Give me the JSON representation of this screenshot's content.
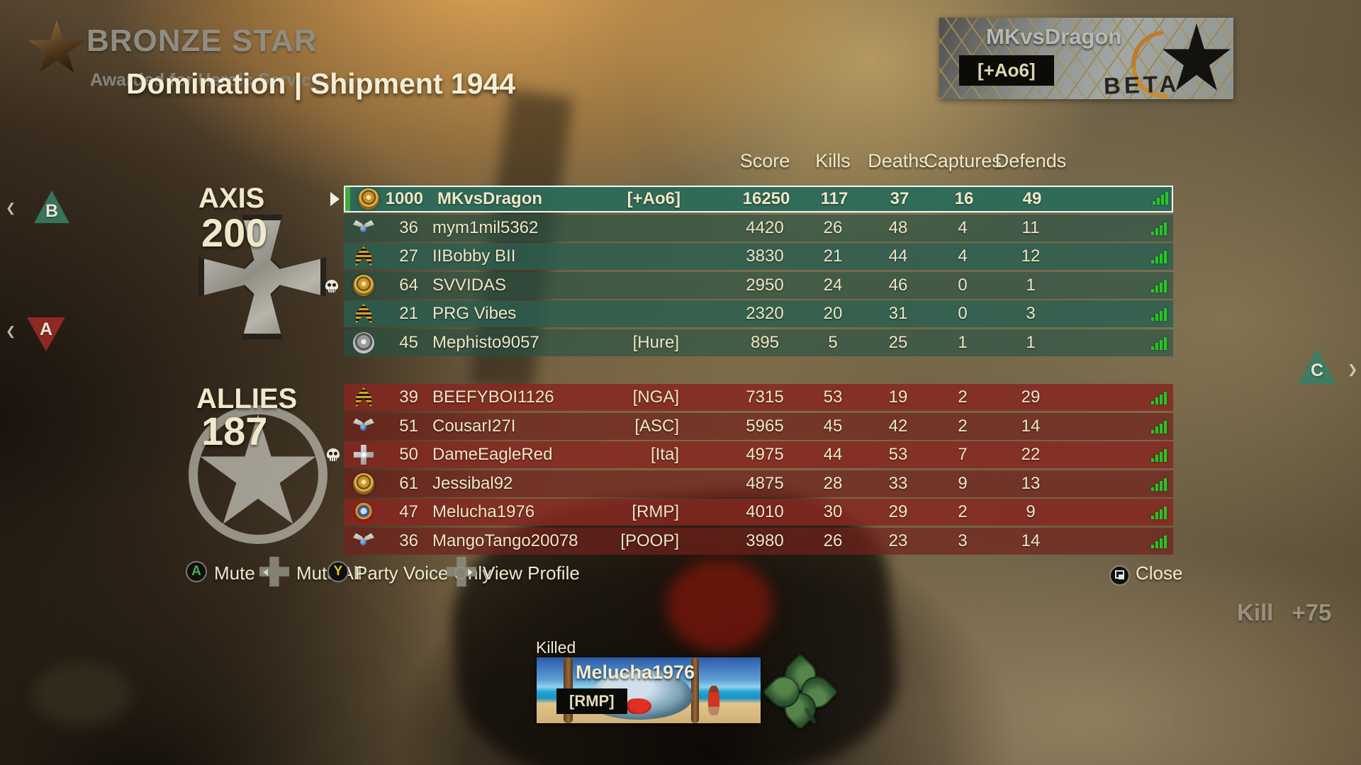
{
  "award": {
    "title": "BRONZE STAR",
    "subtitle": "Awarded for Heroic Service"
  },
  "match": {
    "mode_map": "Domination | Shipment 1944"
  },
  "player_card": {
    "name": "MKvsDragon",
    "clan": "[+Ao6]",
    "stamp": "BETA"
  },
  "columns": [
    "Score",
    "Kills",
    "Deaths",
    "Captures",
    "Defends"
  ],
  "teams": [
    {
      "name": "AXIS",
      "score": "200",
      "emblem": "iron-cross",
      "players": [
        {
          "level": "1000",
          "name": "MKvsDragon",
          "clan": "[+Ao6]",
          "score": "16250",
          "kills": "117",
          "deaths": "37",
          "captures": "16",
          "defends": "49",
          "emblem": "prestige-gold",
          "highlight": true
        },
        {
          "level": "36",
          "name": "mym1mil5362",
          "clan": "",
          "score": "4420",
          "kills": "26",
          "deaths": "48",
          "captures": "4",
          "defends": "11",
          "emblem": "wings"
        },
        {
          "level": "27",
          "name": "IIBobby BII",
          "clan": "",
          "score": "3830",
          "kills": "21",
          "deaths": "44",
          "captures": "4",
          "defends": "12",
          "emblem": "chevrons"
        },
        {
          "level": "64",
          "name": "SVVIDAS",
          "clan": "",
          "score": "2950",
          "kills": "24",
          "deaths": "46",
          "captures": "0",
          "defends": "1",
          "emblem": "prestige-gold"
        },
        {
          "level": "21",
          "name": "PRG Vibes",
          "clan": "",
          "score": "2320",
          "kills": "20",
          "deaths": "31",
          "captures": "0",
          "defends": "3",
          "emblem": "chevrons"
        },
        {
          "level": "45",
          "name": "Mephisto9057",
          "clan": "[Hure]",
          "score": "895",
          "kills": "5",
          "deaths": "25",
          "captures": "1",
          "defends": "1",
          "emblem": "medal-silver"
        }
      ]
    },
    {
      "name": "ALLIES",
      "score": "187",
      "emblem": "allied-star",
      "players": [
        {
          "level": "39",
          "name": "BEEFYBOI1126",
          "clan": "[NGA]",
          "score": "7315",
          "kills": "53",
          "deaths": "19",
          "captures": "2",
          "defends": "29",
          "emblem": "chevrons"
        },
        {
          "level": "51",
          "name": "CousarI27I",
          "clan": "[ASC]",
          "score": "5965",
          "kills": "45",
          "deaths": "42",
          "captures": "2",
          "defends": "14",
          "emblem": "wings"
        },
        {
          "level": "50",
          "name": "DameEagleRed",
          "clan": "[Ita]",
          "score": "4975",
          "kills": "44",
          "deaths": "53",
          "captures": "7",
          "defends": "22",
          "emblem": "cross-silver"
        },
        {
          "level": "61",
          "name": "Jessibal92",
          "clan": "",
          "score": "4875",
          "kills": "28",
          "deaths": "33",
          "captures": "9",
          "defends": "13",
          "emblem": "prestige-gold"
        },
        {
          "level": "47",
          "name": "Melucha1976",
          "clan": "[RMP]",
          "score": "4010",
          "kills": "30",
          "deaths": "29",
          "captures": "2",
          "defends": "9",
          "emblem": "rosette-red"
        },
        {
          "level": "36",
          "name": "MangoTango20078",
          "clan": "[POOP]",
          "score": "3980",
          "kills": "26",
          "deaths": "23",
          "captures": "3",
          "defends": "14",
          "emblem": "wings"
        }
      ]
    }
  ],
  "actions": [
    {
      "button": "A",
      "label": "Mute"
    },
    {
      "button": "dpad-left",
      "label": "Mute All"
    },
    {
      "button": "Y",
      "label": "Party Voice Only"
    },
    {
      "button": "dpad-right",
      "label": "View Profile"
    }
  ],
  "close": {
    "icon": "view-button",
    "label": "Close"
  },
  "killfeed": {
    "heading": "Killed",
    "player": "Melucha1976",
    "clan": "[RMP]"
  },
  "score_popup": {
    "event": "Kill",
    "points": "+75"
  },
  "markers": [
    {
      "label": "B",
      "team": "axis"
    },
    {
      "label": "A",
      "team": "allies"
    },
    {
      "label": "C",
      "team": "axis"
    }
  ],
  "icons": {
    "edge_chevron_left": "❮",
    "edge_chevron_right": "❯",
    "signal": "connection-bars-icon",
    "skull": "skull-icon",
    "clover": "four-leaf-clover-icon"
  },
  "colors": {
    "axis_row": "#285e50",
    "allies_row": "#862722",
    "signal_green": "#27c527",
    "selected_stripe": "#3fae39",
    "cream_text": "#efe7c6"
  }
}
